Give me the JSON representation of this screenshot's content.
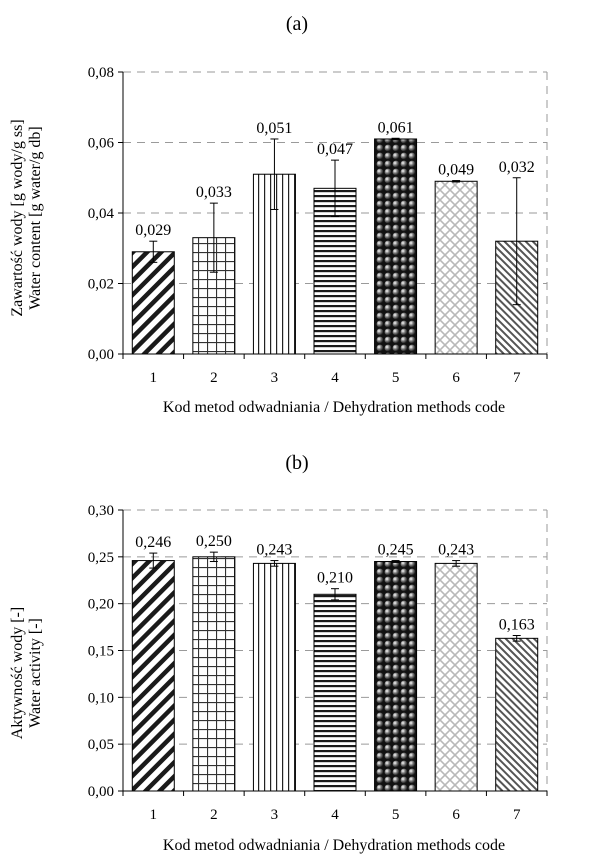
{
  "chart_data": [
    {
      "type": "bar",
      "panel_label": "(a)",
      "categories": [
        "1",
        "2",
        "3",
        "4",
        "5",
        "6",
        "7"
      ],
      "values": [
        0.029,
        0.033,
        0.051,
        0.047,
        0.061,
        0.049,
        0.032
      ],
      "value_labels": [
        "0,029",
        "0,033",
        "0,051",
        "0,047",
        "0,061",
        "0,049",
        "0,032"
      ],
      "error_bars": [
        0.003,
        0.0098,
        0.01,
        0.008,
        0.0002,
        0.0002,
        0.018
      ],
      "patterns": [
        "diag-thick",
        "grid",
        "vertical",
        "horizontal",
        "dots",
        "cross-light",
        "diag-thin"
      ],
      "ylabel_line1": "Zawartość wody [g wody/g ss]",
      "ylabel_line2": "Water content [g water/g db]",
      "xlabel": "Kod metod odwadniania / Dehydration methods code",
      "ylim": [
        0,
        0.08
      ],
      "yticks": [
        0,
        0.02,
        0.04,
        0.06,
        0.08
      ],
      "ytick_labels": [
        "0,00",
        "0,02",
        "0,04",
        "0,06",
        "0,08"
      ],
      "grid": true
    },
    {
      "type": "bar",
      "panel_label": "(b)",
      "categories": [
        "1",
        "2",
        "3",
        "4",
        "5",
        "6",
        "7"
      ],
      "values": [
        0.246,
        0.25,
        0.243,
        0.21,
        0.245,
        0.243,
        0.163
      ],
      "value_labels": [
        "0,246",
        "0,250",
        "0,243",
        "0,210",
        "0,245",
        "0,243",
        "0,163"
      ],
      "error_bars": [
        0.008,
        0.005,
        0.003,
        0.006,
        0.001,
        0.003,
        0.003
      ],
      "patterns": [
        "diag-thick",
        "grid",
        "vertical",
        "horizontal",
        "dots",
        "cross-light",
        "diag-thin"
      ],
      "ylabel_line1": "Aktywność wody [-]",
      "ylabel_line2": "Water activity [-]",
      "xlabel": "Kod metod odwadniania / Dehydration methods code",
      "ylim": [
        0,
        0.3
      ],
      "yticks": [
        0,
        0.05,
        0.1,
        0.15,
        0.2,
        0.25,
        0.3
      ],
      "ytick_labels": [
        "0,00",
        "0,05",
        "0,10",
        "0,15",
        "0,20",
        "0,25",
        "0,30"
      ],
      "grid": true
    }
  ]
}
